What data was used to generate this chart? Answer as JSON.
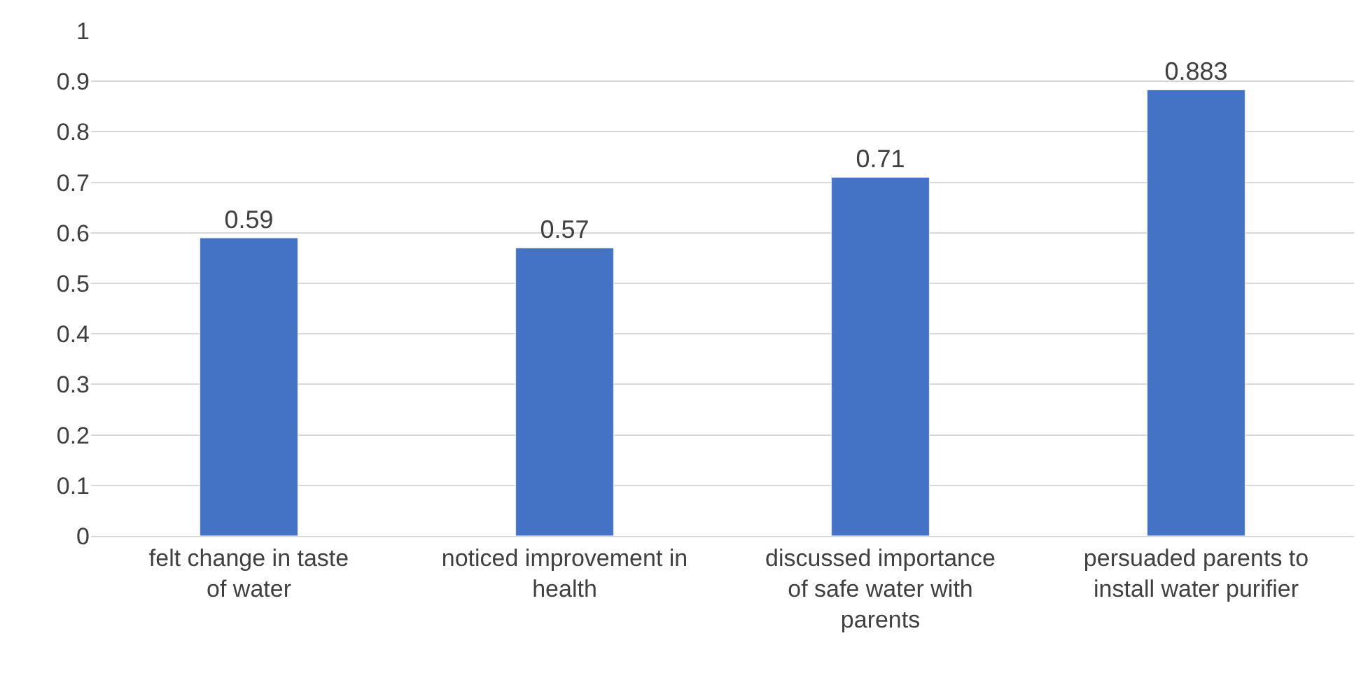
{
  "chart_data": {
    "type": "bar",
    "categories": [
      "felt change in taste of water",
      "noticed improvement in health",
      "discussed importance of safe water with parents",
      "persuaded parents to install water purifier"
    ],
    "values": [
      0.59,
      0.57,
      0.71,
      0.883
    ],
    "color": "#4472c4",
    "ylim": [
      0,
      1
    ],
    "yticks": [
      0,
      0.1,
      0.2,
      0.3,
      0.4,
      0.5,
      0.6,
      0.7,
      0.8,
      0.9,
      1
    ],
    "grid": "y",
    "data_labels": true
  }
}
